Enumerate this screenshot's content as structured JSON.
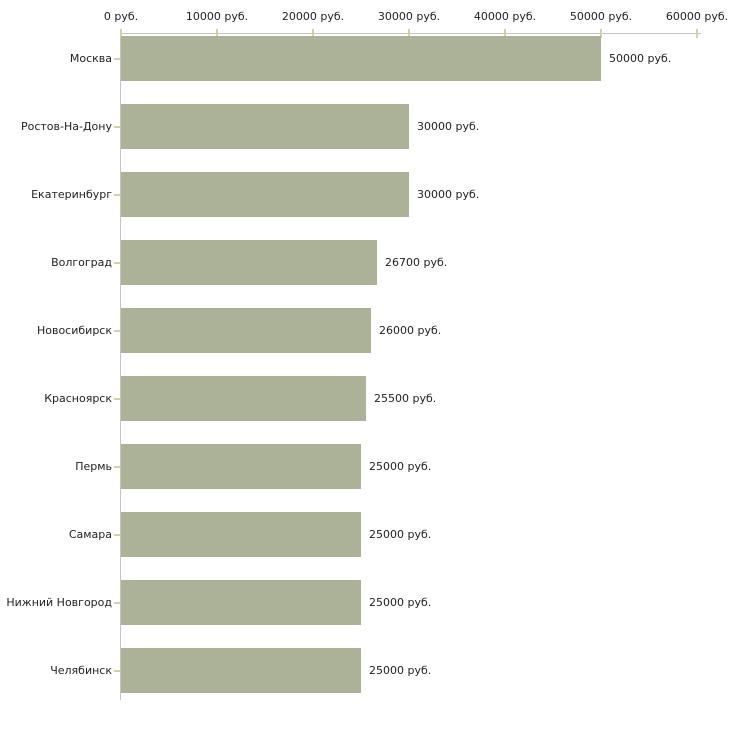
{
  "chart_data": {
    "type": "bar",
    "orientation": "horizontal",
    "title": "",
    "xlabel": "",
    "ylabel": "",
    "categories": [
      "Москва",
      "Ростов-На-Дону",
      "Екатеринбург",
      "Волгоград",
      "Новосибирск",
      "Красноярск",
      "Пермь",
      "Самара",
      "Нижний Новгород",
      "Челябинск"
    ],
    "values": [
      50000,
      30000,
      30000,
      26700,
      26000,
      25500,
      25000,
      25000,
      25000,
      25000
    ],
    "value_labels": [
      "50000 руб.",
      "30000 руб.",
      "30000 руб.",
      "26700 руб.",
      "26000 руб.",
      "25500 руб.",
      "25000 руб.",
      "25000 руб.",
      "25000 руб.",
      "25000 руб."
    ],
    "xlim": [
      0,
      60000
    ],
    "x_ticks": [
      0,
      10000,
      20000,
      30000,
      40000,
      50000,
      60000
    ],
    "x_tick_labels": [
      "0 руб.",
      "10000 руб.",
      "20000 руб.",
      "30000 руб.",
      "40000 руб.",
      "50000 руб.",
      "60000 руб."
    ],
    "grid": false,
    "legend": "none",
    "colors": {
      "bar": "#acb298",
      "axis_line": "#c4c4c4",
      "tick_mark": "#d6d0a8",
      "text": "#222222"
    }
  }
}
